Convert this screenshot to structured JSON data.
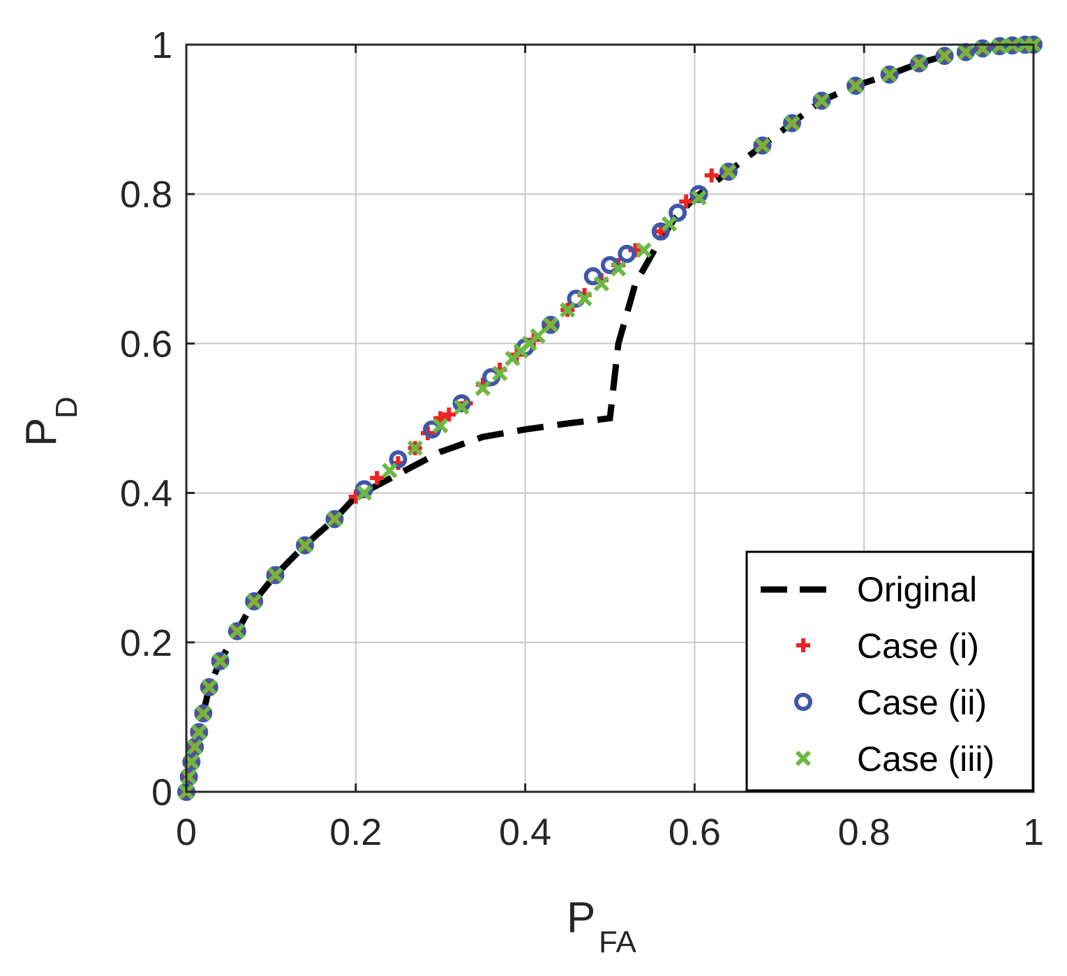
{
  "chart_data": {
    "type": "scatter",
    "xlabel": "P",
    "xlabel_sub": "FA",
    "ylabel": "P",
    "ylabel_sub": "D",
    "xlim": [
      0,
      1
    ],
    "ylim": [
      0,
      1
    ],
    "xticks": [
      0,
      0.2,
      0.4,
      0.6,
      0.8,
      1
    ],
    "yticks": [
      0,
      0.2,
      0.4,
      0.6,
      0.8,
      1
    ],
    "xtick_labels": [
      "0",
      "0.2",
      "0.4",
      "0.6",
      "0.8",
      "1"
    ],
    "ytick_labels": [
      "0",
      "0.2",
      "0.4",
      "0.6",
      "0.8",
      "1"
    ],
    "grid": true,
    "legend_position": "bottom-right",
    "series": [
      {
        "name": "Original",
        "style": "dashed-line",
        "color": "#000000",
        "x": [
          0.0,
          0.003,
          0.006,
          0.01,
          0.015,
          0.02,
          0.027,
          0.04,
          0.06,
          0.08,
          0.105,
          0.14,
          0.175,
          0.2,
          0.25,
          0.3,
          0.35,
          0.4,
          0.45,
          0.5,
          0.51,
          0.53,
          0.555,
          0.575,
          0.6,
          0.64,
          0.68,
          0.715,
          0.75,
          0.79,
          0.83,
          0.865,
          0.895,
          0.92,
          0.94,
          0.96,
          0.975,
          0.99,
          1.0
        ],
        "y": [
          0.0,
          0.02,
          0.04,
          0.06,
          0.08,
          0.105,
          0.14,
          0.175,
          0.215,
          0.255,
          0.29,
          0.33,
          0.365,
          0.395,
          0.425,
          0.455,
          0.475,
          0.485,
          0.493,
          0.5,
          0.6,
          0.68,
          0.73,
          0.765,
          0.795,
          0.83,
          0.865,
          0.895,
          0.925,
          0.945,
          0.96,
          0.975,
          0.985,
          0.99,
          0.995,
          0.998,
          0.999,
          1.0,
          1.0
        ]
      },
      {
        "name": "Case (i)",
        "style": "plus",
        "color": "#ED2224",
        "x": [
          0.0,
          0.003,
          0.006,
          0.01,
          0.015,
          0.02,
          0.027,
          0.04,
          0.06,
          0.08,
          0.105,
          0.14,
          0.175,
          0.2,
          0.225,
          0.25,
          0.27,
          0.285,
          0.3,
          0.31,
          0.33,
          0.35,
          0.37,
          0.39,
          0.41,
          0.43,
          0.45,
          0.47,
          0.49,
          0.51,
          0.53,
          0.56,
          0.59,
          0.62,
          0.64,
          0.68,
          0.715,
          0.75,
          0.79,
          0.83,
          0.865,
          0.895,
          0.92,
          0.94,
          0.96,
          0.975,
          0.99,
          1.0
        ],
        "y": [
          0.0,
          0.02,
          0.04,
          0.06,
          0.08,
          0.105,
          0.14,
          0.175,
          0.215,
          0.255,
          0.29,
          0.33,
          0.365,
          0.395,
          0.42,
          0.44,
          0.46,
          0.48,
          0.5,
          0.505,
          0.52,
          0.545,
          0.565,
          0.585,
          0.605,
          0.625,
          0.645,
          0.665,
          0.685,
          0.705,
          0.725,
          0.75,
          0.79,
          0.825,
          0.83,
          0.865,
          0.895,
          0.925,
          0.945,
          0.96,
          0.975,
          0.985,
          0.99,
          0.995,
          0.998,
          0.999,
          1.0,
          1.0
        ]
      },
      {
        "name": "Case (ii)",
        "style": "circle",
        "color": "#3F57A6",
        "x": [
          0.0,
          0.003,
          0.006,
          0.01,
          0.015,
          0.02,
          0.027,
          0.04,
          0.06,
          0.08,
          0.105,
          0.14,
          0.175,
          0.21,
          0.25,
          0.29,
          0.325,
          0.36,
          0.4,
          0.43,
          0.46,
          0.48,
          0.5,
          0.52,
          0.56,
          0.58,
          0.605,
          0.64,
          0.68,
          0.715,
          0.75,
          0.79,
          0.83,
          0.865,
          0.895,
          0.92,
          0.94,
          0.96,
          0.975,
          0.99,
          1.0
        ],
        "y": [
          0.0,
          0.02,
          0.04,
          0.06,
          0.08,
          0.105,
          0.14,
          0.175,
          0.215,
          0.255,
          0.29,
          0.33,
          0.365,
          0.405,
          0.445,
          0.485,
          0.52,
          0.555,
          0.595,
          0.625,
          0.66,
          0.69,
          0.705,
          0.72,
          0.75,
          0.775,
          0.8,
          0.83,
          0.865,
          0.895,
          0.925,
          0.945,
          0.96,
          0.975,
          0.985,
          0.99,
          0.995,
          0.998,
          0.999,
          1.0,
          1.0
        ]
      },
      {
        "name": "Case (iii)",
        "style": "x",
        "color": "#6DB843",
        "x": [
          0.0,
          0.003,
          0.006,
          0.01,
          0.015,
          0.02,
          0.027,
          0.04,
          0.06,
          0.08,
          0.105,
          0.14,
          0.175,
          0.21,
          0.24,
          0.27,
          0.3,
          0.325,
          0.35,
          0.37,
          0.385,
          0.395,
          0.405,
          0.415,
          0.43,
          0.45,
          0.47,
          0.49,
          0.51,
          0.54,
          0.57,
          0.605,
          0.64,
          0.68,
          0.715,
          0.75,
          0.79,
          0.83,
          0.865,
          0.895,
          0.92,
          0.94,
          0.96,
          0.975,
          0.99,
          1.0
        ],
        "y": [
          0.0,
          0.02,
          0.04,
          0.06,
          0.08,
          0.105,
          0.14,
          0.175,
          0.215,
          0.255,
          0.29,
          0.33,
          0.365,
          0.4,
          0.43,
          0.46,
          0.49,
          0.515,
          0.54,
          0.56,
          0.58,
          0.59,
          0.6,
          0.61,
          0.625,
          0.645,
          0.66,
          0.68,
          0.7,
          0.725,
          0.76,
          0.795,
          0.83,
          0.865,
          0.895,
          0.925,
          0.945,
          0.96,
          0.975,
          0.985,
          0.99,
          0.995,
          0.998,
          0.999,
          1.0,
          1.0
        ]
      }
    ]
  }
}
